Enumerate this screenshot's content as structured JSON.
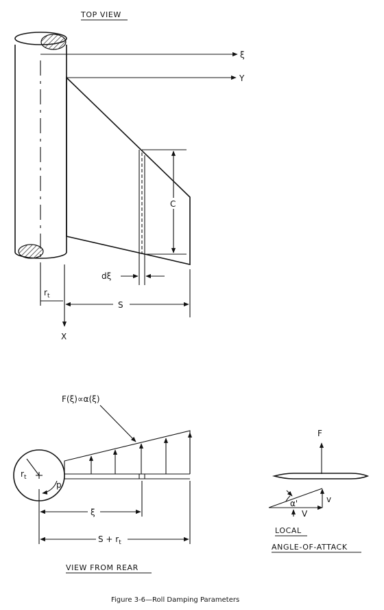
{
  "top_view": {
    "title": "TOP VIEW",
    "axis_xi": "ξ",
    "axis_y": "Y",
    "axis_x": "X",
    "chord_label": "C",
    "strip_label": "dξ",
    "radius_label": "r",
    "radius_sub": "t",
    "span_label": "S"
  },
  "rear_view": {
    "title": "VIEW FROM REAR",
    "load_label": "F(ξ)∝α(ξ)",
    "radius_label": "r",
    "radius_sub": "t",
    "roll_rate_label": "p",
    "xi_label": "ξ",
    "span_label": "S + r",
    "span_sub": "t"
  },
  "local_view": {
    "force_label": "F",
    "alpha_label": "α'",
    "v_small_label": "v",
    "v_large_label": "V",
    "title_line1": "LOCAL",
    "title_line2": "ANGLE-OF-ATTACK"
  },
  "caption": "Figure 3-6—Roll Damping Parameters"
}
